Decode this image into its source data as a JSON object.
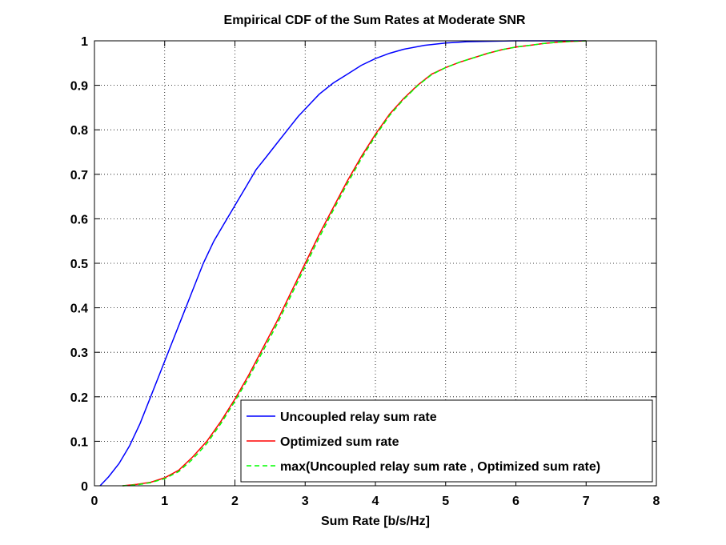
{
  "chart_data": {
    "type": "line",
    "title": "Empirical CDF of the Sum Rates at Moderate SNR",
    "xlabel": "Sum Rate [b/s/Hz]",
    "ylabel": "",
    "xlim": [
      0,
      8
    ],
    "ylim": [
      0,
      1
    ],
    "xticks": [
      "0",
      "1",
      "2",
      "3",
      "4",
      "5",
      "6",
      "7",
      "8"
    ],
    "yticks": [
      "0",
      "0.1",
      "0.2",
      "0.3",
      "0.4",
      "0.5",
      "0.6",
      "0.7",
      "0.8",
      "0.9",
      "1"
    ],
    "grid": true,
    "legend_position": "bottom-right",
    "series": [
      {
        "name": "Uncoupled relay sum rate",
        "color": "#0000ff",
        "style": "solid",
        "x": [
          0.08,
          0.2,
          0.35,
          0.5,
          0.65,
          0.8,
          0.95,
          1.1,
          1.25,
          1.4,
          1.55,
          1.7,
          1.85,
          2.0,
          2.15,
          2.3,
          2.45,
          2.6,
          2.75,
          2.9,
          3.05,
          3.2,
          3.4,
          3.6,
          3.8,
          4.0,
          4.2,
          4.4,
          4.7,
          5.0,
          5.3,
          5.6,
          6.0,
          6.5,
          7.0
        ],
        "y": [
          0.0,
          0.02,
          0.05,
          0.09,
          0.14,
          0.2,
          0.26,
          0.32,
          0.38,
          0.44,
          0.5,
          0.55,
          0.59,
          0.63,
          0.67,
          0.71,
          0.74,
          0.77,
          0.8,
          0.83,
          0.855,
          0.88,
          0.905,
          0.925,
          0.945,
          0.96,
          0.972,
          0.981,
          0.99,
          0.995,
          0.998,
          0.999,
          1.0,
          1.0,
          1.0
        ]
      },
      {
        "name": "Optimized sum rate",
        "color": "#ff0000",
        "style": "solid",
        "x": [
          0.4,
          0.6,
          0.8,
          1.0,
          1.2,
          1.4,
          1.6,
          1.8,
          2.0,
          2.2,
          2.4,
          2.6,
          2.8,
          3.0,
          3.2,
          3.4,
          3.6,
          3.8,
          4.0,
          4.2,
          4.4,
          4.6,
          4.8,
          5.0,
          5.2,
          5.4,
          5.6,
          5.8,
          6.0,
          6.2,
          6.4,
          6.6,
          6.8,
          7.0
        ],
        "y": [
          0.0,
          0.003,
          0.008,
          0.018,
          0.035,
          0.065,
          0.1,
          0.145,
          0.195,
          0.25,
          0.31,
          0.37,
          0.435,
          0.5,
          0.565,
          0.625,
          0.685,
          0.74,
          0.79,
          0.835,
          0.87,
          0.9,
          0.925,
          0.94,
          0.952,
          0.962,
          0.972,
          0.98,
          0.986,
          0.99,
          0.994,
          0.997,
          0.999,
          1.0
        ]
      },
      {
        "name": "max(Uncoupled relay sum rate , Optimized sum rate)",
        "color": "#00ff00",
        "style": "dashed",
        "x": [
          0.4,
          0.6,
          0.8,
          1.0,
          1.2,
          1.4,
          1.6,
          1.8,
          2.0,
          2.2,
          2.4,
          2.6,
          2.8,
          3.0,
          3.2,
          3.4,
          3.6,
          3.8,
          4.0,
          4.2,
          4.4,
          4.6,
          4.8,
          5.0,
          5.2,
          5.4,
          5.6,
          5.8,
          6.0,
          6.2,
          6.4,
          6.6,
          6.8,
          7.0
        ],
        "y": [
          0.0,
          0.002,
          0.007,
          0.016,
          0.032,
          0.06,
          0.095,
          0.14,
          0.19,
          0.244,
          0.303,
          0.363,
          0.428,
          0.493,
          0.558,
          0.619,
          0.679,
          0.735,
          0.786,
          0.832,
          0.868,
          0.899,
          0.924,
          0.94,
          0.952,
          0.962,
          0.972,
          0.98,
          0.986,
          0.99,
          0.994,
          0.997,
          0.999,
          1.0
        ]
      }
    ]
  }
}
